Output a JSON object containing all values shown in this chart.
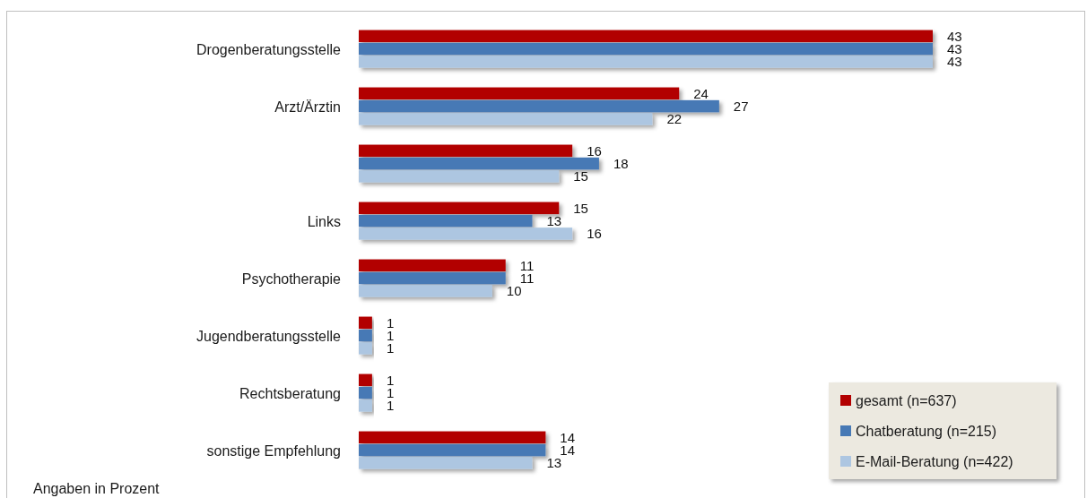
{
  "chart_data": {
    "type": "bar",
    "orientation": "horizontal",
    "categories": [
      "Drogenberatungsstelle",
      "Arzt/Ärztin",
      null,
      "Links",
      "Psychotherapie",
      "Jugendberatungsstelle",
      "Rechtsberatung",
      "sonstige Empfehlung"
    ],
    "series": [
      {
        "name": "gesamt (n=637)",
        "color": "#b20000",
        "values": [
          43,
          24,
          16,
          15,
          11,
          1,
          1,
          14
        ]
      },
      {
        "name": "Chatberatung (n=215)",
        "color": "#4779b5",
        "values": [
          43,
          27,
          18,
          13,
          11,
          1,
          1,
          14
        ]
      },
      {
        "name": "E-Mail-Beratung (n=422)",
        "color": "#adc6e1",
        "values": [
          43,
          22,
          15,
          16,
          10,
          1,
          1,
          13
        ]
      }
    ],
    "data_labels": true,
    "legend": "bottom right",
    "tick_labels": "y",
    "annotations": [
      "Angaben in Prozent"
    ]
  }
}
